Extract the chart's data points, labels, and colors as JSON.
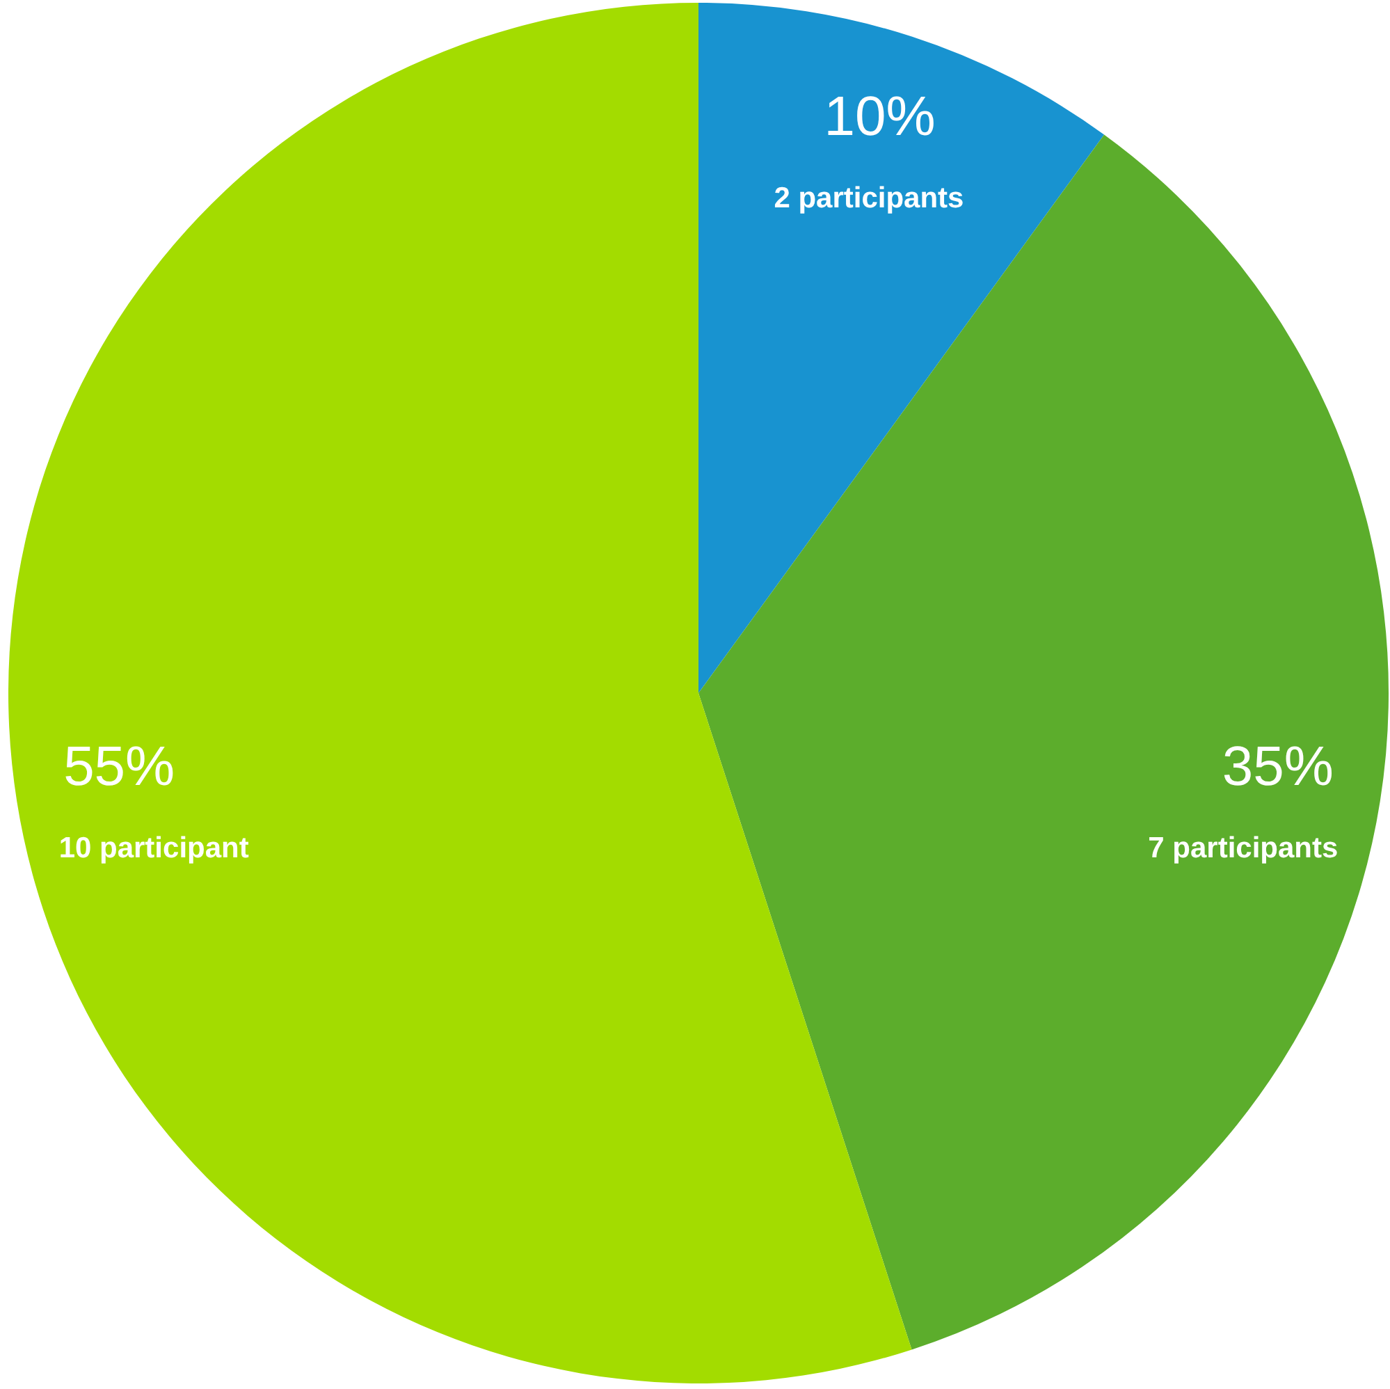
{
  "chart_data": {
    "type": "pie",
    "categories": [
      "2 participants",
      "7 participants",
      "10 participant"
    ],
    "values": [
      10,
      35,
      55
    ],
    "value_labels": [
      "10%",
      "35%",
      "55%"
    ],
    "colors": [
      "#1893d0",
      "#5cad2c",
      "#a3dc00"
    ]
  }
}
